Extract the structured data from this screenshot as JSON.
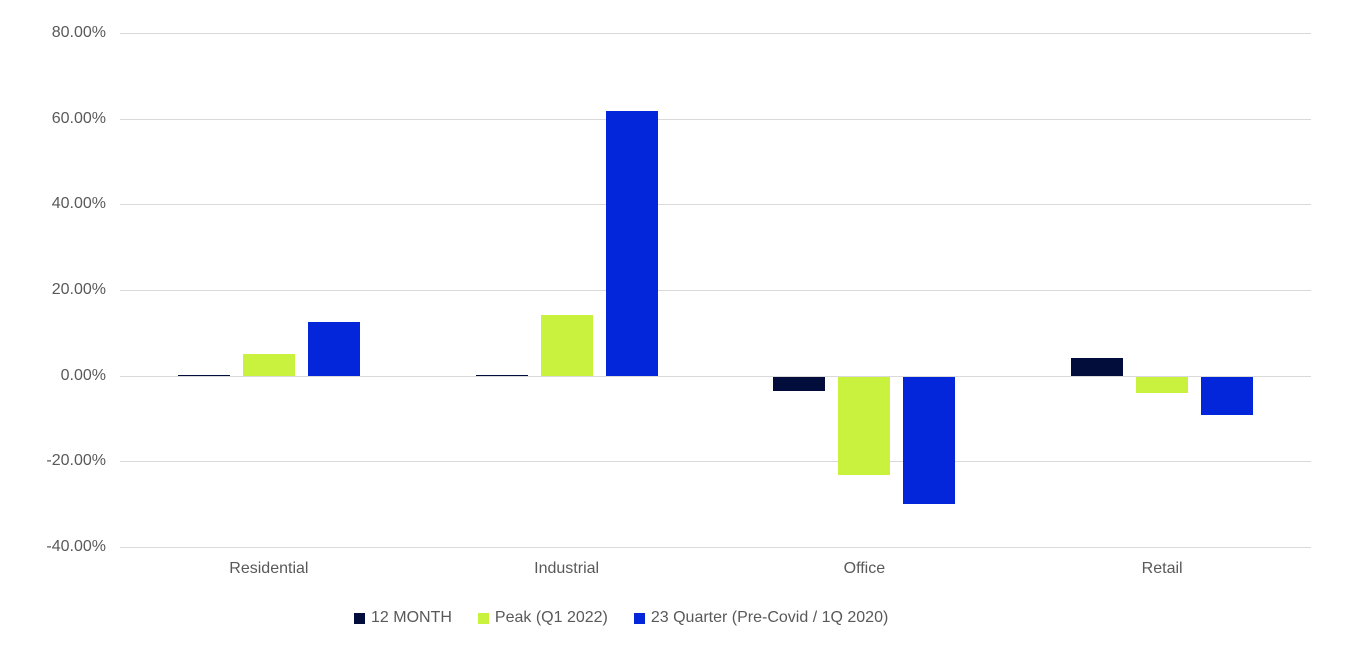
{
  "chart_data": {
    "type": "bar",
    "title": "",
    "categories": [
      "Residential",
      "Industrial",
      "Office",
      "Retail"
    ],
    "series": [
      {
        "name": "12 MONTH",
        "color": "#030d3b",
        "values": [
          0.2,
          0.2,
          -3.4,
          4.2
        ]
      },
      {
        "name": "Peak (Q1 2022)",
        "color": "#c8f23d",
        "values": [
          5.0,
          14.2,
          -23.0,
          -3.7
        ]
      },
      {
        "name": "23 Quarter (Pre-Covid / 1Q 2020)",
        "color": "#0326da",
        "values": [
          12.5,
          61.7,
          -29.7,
          -9.0
        ]
      }
    ],
    "xlabel": "",
    "ylabel": "",
    "ylim": [
      -40,
      80
    ],
    "ytick_step": 20,
    "ytick_labels": [
      "80.00%",
      "60.00%",
      "40.00%",
      "20.00%",
      "0.00%",
      "-20.00%",
      "-40.00%"
    ],
    "grid": true,
    "legend_position": "bottom",
    "colors": {
      "gridline": "#d9d9d9",
      "axis_text": "#595959",
      "background": "#ffffff"
    }
  }
}
